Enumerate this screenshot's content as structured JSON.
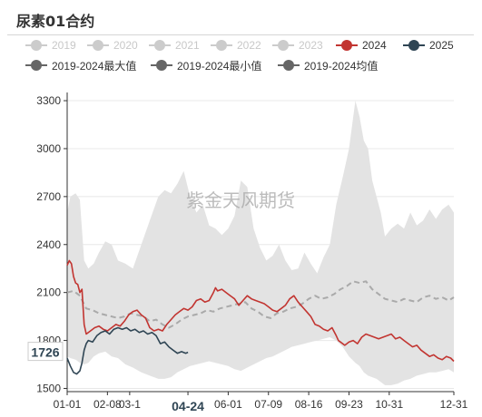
{
  "title": "尿素01合约",
  "legend": {
    "items": [
      {
        "label": "2019",
        "color": "#cccccc",
        "active": false
      },
      {
        "label": "2020",
        "color": "#cccccc",
        "active": false
      },
      {
        "label": "2021",
        "color": "#cccccc",
        "active": false
      },
      {
        "label": "2022",
        "color": "#cccccc",
        "active": false
      },
      {
        "label": "2023",
        "color": "#cccccc",
        "active": false
      },
      {
        "label": "2024",
        "color": "#c23531",
        "active": true
      },
      {
        "label": "2025",
        "color": "#2f4554",
        "active": true
      },
      {
        "label": "2019-2024最大值",
        "color": "#666666",
        "active": true
      },
      {
        "label": "2019-2024最小值",
        "color": "#666666",
        "active": true
      },
      {
        "label": "2019-2024均值",
        "color": "#666666",
        "active": true
      }
    ]
  },
  "watermark": "紫金天风期货",
  "chart_data": {
    "type": "line",
    "x_ticks": [
      "01-01",
      "02-08",
      "03-1",
      "04-24",
      "06-01",
      "07-09",
      "08-16",
      "09-23",
      "10-31",
      "12-31"
    ],
    "x_tick_days": [
      0,
      38,
      59,
      114,
      152,
      190,
      228,
      266,
      304,
      365
    ],
    "highlight_x_label": "04-24",
    "y_ticks": [
      1500,
      1800,
      2100,
      2400,
      2700,
      3000,
      3300
    ],
    "ylim": [
      1480,
      3340
    ],
    "xlim_days": [
      0,
      365
    ],
    "current_value_label": "1726",
    "grid": true,
    "series": [
      {
        "name": "2019-2024最大值/最小值",
        "type": "band",
        "color": "#e3e3e3",
        "x": [
          0,
          3,
          8,
          12,
          16,
          20,
          25,
          30,
          36,
          42,
          48,
          55,
          62,
          70,
          78,
          86,
          92,
          98,
          104,
          110,
          116,
          122,
          128,
          134,
          140,
          146,
          152,
          158,
          164,
          170,
          176,
          182,
          188,
          194,
          200,
          206,
          212,
          218,
          224,
          230,
          236,
          242,
          248,
          254,
          260,
          266,
          272,
          276,
          280,
          284,
          288,
          292,
          296,
          300,
          306,
          312,
          318,
          324,
          330,
          336,
          342,
          348,
          354,
          360,
          365
        ],
        "upper": [
          2600,
          2700,
          2720,
          2680,
          2300,
          2250,
          2280,
          2350,
          2420,
          2400,
          2300,
          2280,
          2250,
          2400,
          2550,
          2700,
          2740,
          2720,
          2780,
          2860,
          2700,
          2600,
          2650,
          2520,
          2500,
          2460,
          2500,
          2580,
          2800,
          2760,
          2500,
          2380,
          2300,
          2330,
          2400,
          2300,
          2240,
          2250,
          2350,
          2280,
          2220,
          2320,
          2400,
          2650,
          2820,
          3000,
          3300,
          3200,
          3050,
          3000,
          2800,
          2700,
          2600,
          2450,
          2500,
          2530,
          2500,
          2600,
          2520,
          2550,
          2620,
          2560,
          2620,
          2650,
          2600
        ],
        "lower": [
          1700,
          1690,
          1680,
          1660,
          1650,
          1660,
          1700,
          1720,
          1730,
          1700,
          1690,
          1650,
          1630,
          1600,
          1580,
          1560,
          1560,
          1570,
          1600,
          1620,
          1640,
          1650,
          1660,
          1670,
          1660,
          1650,
          1640,
          1620,
          1610,
          1630,
          1650,
          1670,
          1690,
          1700,
          1720,
          1740,
          1760,
          1770,
          1780,
          1790,
          1800,
          1810,
          1820,
          1800,
          1760,
          1700,
          1660,
          1640,
          1600,
          1580,
          1570,
          1560,
          1540,
          1520,
          1520,
          1530,
          1550,
          1560,
          1580,
          1590,
          1600,
          1600,
          1610,
          1620,
          1600
        ]
      },
      {
        "name": "2019-2024均值",
        "type": "dashed",
        "color": "#aaaaaa",
        "x": [
          0,
          6,
          12,
          18,
          24,
          30,
          36,
          42,
          48,
          54,
          60,
          66,
          72,
          78,
          84,
          90,
          96,
          102,
          108,
          114,
          120,
          126,
          132,
          138,
          144,
          150,
          156,
          162,
          168,
          174,
          180,
          186,
          192,
          198,
          204,
          210,
          216,
          222,
          228,
          234,
          240,
          246,
          252,
          258,
          264,
          270,
          276,
          282,
          288,
          294,
          300,
          306,
          312,
          318,
          324,
          330,
          336,
          342,
          348,
          354,
          360,
          365
        ],
        "y": [
          2100,
          2110,
          2080,
          2000,
          1990,
          1970,
          1960,
          1950,
          1940,
          1950,
          1970,
          1960,
          1950,
          1920,
          1930,
          1900,
          1880,
          1900,
          1930,
          1950,
          1960,
          1970,
          1990,
          1980,
          2000,
          2010,
          2020,
          2030,
          2040,
          2000,
          1980,
          1950,
          1940,
          1970,
          1980,
          2000,
          2010,
          2030,
          2060,
          2080,
          2060,
          2070,
          2090,
          2120,
          2140,
          2170,
          2160,
          2170,
          2120,
          2090,
          2060,
          2050,
          2040,
          2060,
          2050,
          2040,
          2070,
          2080,
          2060,
          2070,
          2050,
          2070
        ]
      },
      {
        "name": "2024",
        "type": "line",
        "color": "#c23531",
        "x": [
          0,
          2,
          4,
          6,
          8,
          10,
          12,
          14,
          16,
          18,
          22,
          26,
          30,
          34,
          38,
          42,
          46,
          50,
          54,
          58,
          62,
          66,
          70,
          74,
          78,
          82,
          86,
          90,
          94,
          98,
          102,
          106,
          110,
          114,
          118,
          122,
          126,
          130,
          134,
          138,
          140,
          142,
          146,
          150,
          154,
          158,
          162,
          166,
          170,
          174,
          178,
          182,
          186,
          190,
          194,
          198,
          202,
          206,
          210,
          214,
          218,
          222,
          226,
          230,
          234,
          238,
          242,
          246,
          250,
          254,
          256,
          258,
          262,
          266,
          270,
          274,
          278,
          282,
          286,
          290,
          294,
          298,
          302,
          306,
          310,
          314,
          318,
          322,
          326,
          330,
          334,
          338,
          342,
          346,
          350,
          354,
          358,
          362,
          365
        ],
        "y": [
          2270,
          2300,
          2280,
          2200,
          2160,
          2150,
          2100,
          2120,
          1900,
          1840,
          1860,
          1880,
          1890,
          1870,
          1860,
          1880,
          1900,
          1890,
          1920,
          1960,
          1980,
          1990,
          1960,
          1940,
          1880,
          1860,
          1870,
          1860,
          1900,
          1930,
          1960,
          1980,
          2000,
          1990,
          2010,
          2050,
          2060,
          2040,
          2050,
          2100,
          2130,
          2110,
          2120,
          2100,
          2080,
          2060,
          2020,
          2050,
          2080,
          2060,
          2050,
          2040,
          2030,
          2010,
          1990,
          1980,
          2000,
          2020,
          2060,
          2080,
          2040,
          2010,
          1980,
          1950,
          1900,
          1890,
          1870,
          1860,
          1880,
          1830,
          1800,
          1790,
          1770,
          1790,
          1800,
          1780,
          1820,
          1840,
          1830,
          1820,
          1810,
          1820,
          1830,
          1840,
          1810,
          1820,
          1800,
          1780,
          1760,
          1770,
          1740,
          1720,
          1700,
          1710,
          1690,
          1680,
          1700,
          1690,
          1670
        ]
      },
      {
        "name": "2025",
        "type": "line",
        "color": "#2f4554",
        "x": [
          0,
          3,
          6,
          9,
          12,
          14,
          16,
          18,
          20,
          24,
          28,
          32,
          36,
          40,
          44,
          48,
          52,
          56,
          60,
          64,
          68,
          72,
          76,
          80,
          84,
          88,
          92,
          96,
          100,
          104,
          108,
          112,
          114
        ],
        "y": [
          1690,
          1640,
          1600,
          1590,
          1610,
          1660,
          1740,
          1780,
          1800,
          1790,
          1830,
          1850,
          1860,
          1840,
          1870,
          1880,
          1870,
          1880,
          1860,
          1870,
          1850,
          1860,
          1840,
          1850,
          1830,
          1780,
          1790,
          1760,
          1740,
          1720,
          1730,
          1720,
          1726
        ]
      }
    ]
  }
}
